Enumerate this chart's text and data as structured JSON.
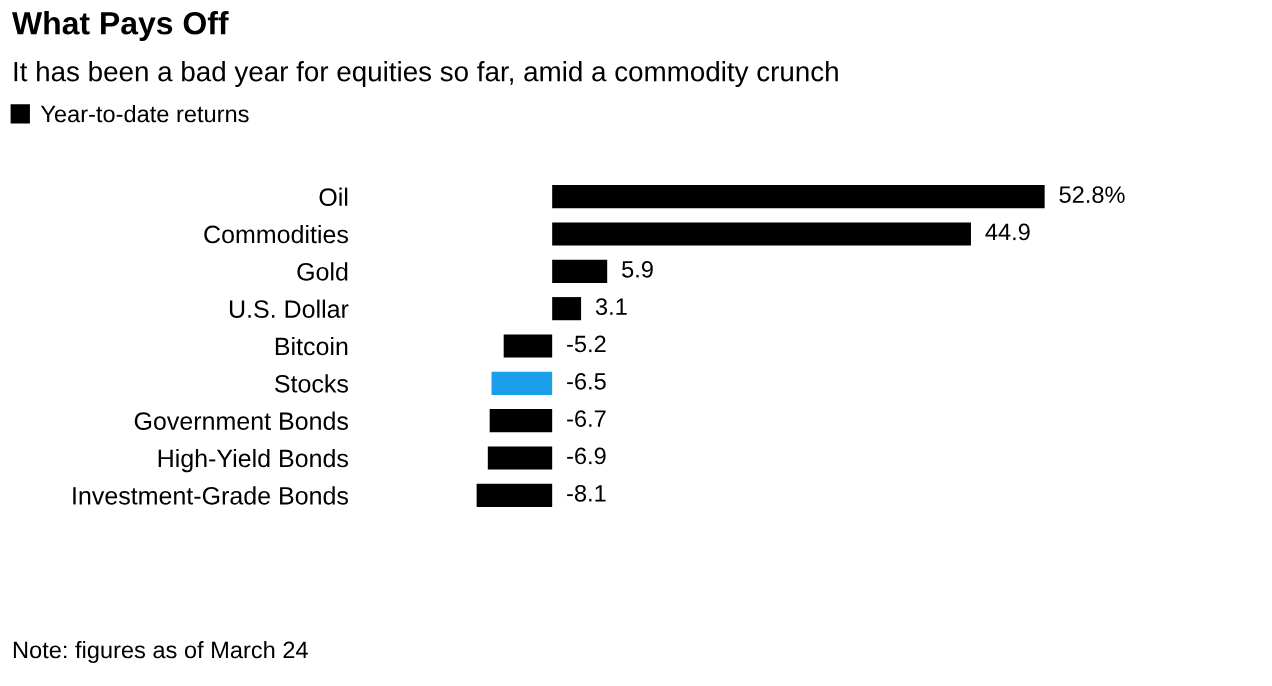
{
  "chart_data": {
    "type": "bar",
    "orientation": "horizontal",
    "title": "What Pays Off",
    "subtitle": "It has been a bad year for equities so far, amid a commodity crunch",
    "categories": [
      "Oil",
      "Commodities",
      "Gold",
      "U.S. Dollar",
      "Bitcoin",
      "Stocks",
      "Government Bonds",
      "High-Yield Bonds",
      "Investment-Grade Bonds"
    ],
    "series": [
      {
        "name": "Year-to-date returns",
        "color": "#000000",
        "colors": [
          "#000000",
          "#000000",
          "#000000",
          "#000000",
          "#000000",
          "#1a9fe8",
          "#000000",
          "#000000",
          "#000000"
        ],
        "values": [
          52.8,
          44.9,
          5.9,
          3.1,
          -5.2,
          -6.5,
          -6.7,
          -6.9,
          -8.1
        ],
        "value_labels": [
          "52.8%",
          "44.9",
          "5.9",
          "3.1",
          "-5.2",
          "-6.5",
          "-6.7",
          "-6.9",
          "-8.1"
        ]
      }
    ],
    "legend": "top left",
    "grid": false,
    "annotations": [
      "Note: figures as of March 24"
    ]
  }
}
